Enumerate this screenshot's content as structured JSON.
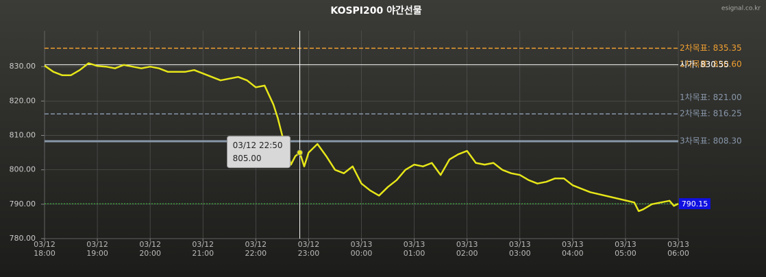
{
  "chart_data": {
    "type": "line",
    "title": "KOSPI200 야간선물",
    "source": "esignal.co.kr",
    "xlim": [
      "03/12 18:00",
      "03/13 06:00"
    ],
    "xticks": [
      {
        "value": "03/12 18:00",
        "label": [
          "03/12",
          "18:00"
        ]
      },
      {
        "value": "03/12 19:00",
        "label": [
          "03/12",
          "19:00"
        ]
      },
      {
        "value": "03/12 20:00",
        "label": [
          "03/12",
          "20:00"
        ]
      },
      {
        "value": "03/12 21:00",
        "label": [
          "03/12",
          "21:00"
        ]
      },
      {
        "value": "03/12 22:00",
        "label": [
          "03/12",
          "22:00"
        ]
      },
      {
        "value": "03/12 23:00",
        "label": [
          "03/12",
          "23:00"
        ]
      },
      {
        "value": "03/13 00:00",
        "label": [
          "03/13",
          "00:00"
        ]
      },
      {
        "value": "03/13 01:00",
        "label": [
          "03/13",
          "01:00"
        ]
      },
      {
        "value": "03/13 02:00",
        "label": [
          "03/13",
          "02:00"
        ]
      },
      {
        "value": "03/13 03:00",
        "label": [
          "03/13",
          "03:00"
        ]
      },
      {
        "value": "03/13 04:00",
        "label": [
          "03/13",
          "04:00"
        ]
      },
      {
        "value": "03/13 05:00",
        "label": [
          "03/13",
          "05:00"
        ]
      },
      {
        "value": "03/13 06:00",
        "label": [
          "03/13",
          "06:00"
        ]
      }
    ],
    "ylim": [
      780,
      840
    ],
    "yticks": [
      {
        "value": 780,
        "label": "780.00"
      },
      {
        "value": 790,
        "label": "790.00"
      },
      {
        "value": 800,
        "label": "800.00"
      },
      {
        "value": 810,
        "label": "810.00"
      },
      {
        "value": 820,
        "label": "820.00"
      },
      {
        "value": 830,
        "label": "830.00"
      }
    ],
    "grid": true,
    "series": [
      {
        "name": "KOSPI200",
        "color": "#e6e619",
        "x": [
          "03/12 18:00",
          "03/12 18:10",
          "03/12 18:20",
          "03/12 18:30",
          "03/12 18:40",
          "03/12 18:50",
          "03/12 19:00",
          "03/12 19:10",
          "03/12 19:20",
          "03/12 19:30",
          "03/12 19:40",
          "03/12 19:50",
          "03/12 20:00",
          "03/12 20:10",
          "03/12 20:20",
          "03/12 20:30",
          "03/12 20:40",
          "03/12 20:50",
          "03/12 21:00",
          "03/12 21:10",
          "03/12 21:20",
          "03/12 21:30",
          "03/12 21:40",
          "03/12 21:50",
          "03/12 22:00",
          "03/12 22:10",
          "03/12 22:20",
          "03/12 22:25",
          "03/12 22:30",
          "03/12 22:35",
          "03/12 22:40",
          "03/12 22:45",
          "03/12 22:50",
          "03/12 22:55",
          "03/12 23:00",
          "03/12 23:10",
          "03/12 23:20",
          "03/12 23:30",
          "03/12 23:40",
          "03/12 23:50",
          "03/13 00:00",
          "03/13 00:10",
          "03/13 00:20",
          "03/13 00:30",
          "03/13 00:40",
          "03/13 00:50",
          "03/13 01:00",
          "03/13 01:10",
          "03/13 01:20",
          "03/13 01:30",
          "03/13 01:40",
          "03/13 01:50",
          "03/13 02:00",
          "03/13 02:10",
          "03/13 02:20",
          "03/13 02:30",
          "03/13 02:40",
          "03/13 02:50",
          "03/13 03:00",
          "03/13 03:10",
          "03/13 03:20",
          "03/13 03:30",
          "03/13 03:40",
          "03/13 03:50",
          "03/13 04:00",
          "03/13 04:10",
          "03/13 04:20",
          "03/13 05:10",
          "03/13 05:15",
          "03/13 05:20",
          "03/13 05:30",
          "03/13 05:40",
          "03/13 05:50",
          "03/13 05:55",
          "03/13 06:00"
        ],
        "values": [
          830.3,
          828.5,
          827.5,
          827.5,
          829,
          831,
          830.2,
          830,
          829.5,
          830.5,
          830,
          829.5,
          830,
          829.5,
          828.5,
          828.5,
          828.5,
          829,
          828,
          827,
          826,
          826.5,
          827,
          826,
          824,
          824.5,
          819,
          815,
          810,
          806,
          801.5,
          804,
          805,
          801,
          805,
          807.5,
          804,
          800,
          799,
          801,
          796,
          794,
          792.5,
          795,
          797,
          800,
          801.5,
          801,
          802,
          798.5,
          803,
          804.5,
          805.5,
          802,
          801.5,
          802,
          800,
          799,
          798.5,
          797,
          796,
          796.5,
          797.5,
          797.5,
          795.5,
          794.5,
          793.5,
          790.5,
          788,
          788.5,
          790,
          790.5,
          791,
          789.5,
          790.15
        ]
      }
    ],
    "reference_lines": [
      {
        "label": "2차목표: 835.35",
        "value": 835.35,
        "color": "#f0a030",
        "style": "dashed"
      },
      {
        "label": "1차목표: 830.60",
        "value": 830.6,
        "color": "#f0a030",
        "style": "none"
      },
      {
        "label": "시가: 830.55",
        "value": 830.55,
        "color": "#ffffff",
        "style": "solid"
      },
      {
        "label": "1차목표: 821.00",
        "value": 821.0,
        "color": "#8898aa",
        "style": "none"
      },
      {
        "label": "2차목표: 816.25",
        "value": 816.25,
        "color": "#8898aa",
        "style": "dashed"
      },
      {
        "label": "3차목표: 808.30",
        "value": 808.3,
        "color": "#8898aa",
        "style": "thick"
      }
    ],
    "current": {
      "value": 790.15,
      "label": "790.15",
      "color": "#1010e0",
      "line_color": "#3cc83c"
    },
    "tooltip": {
      "x": "03/12 22:50",
      "value": 805,
      "value_label": "805.00"
    }
  }
}
